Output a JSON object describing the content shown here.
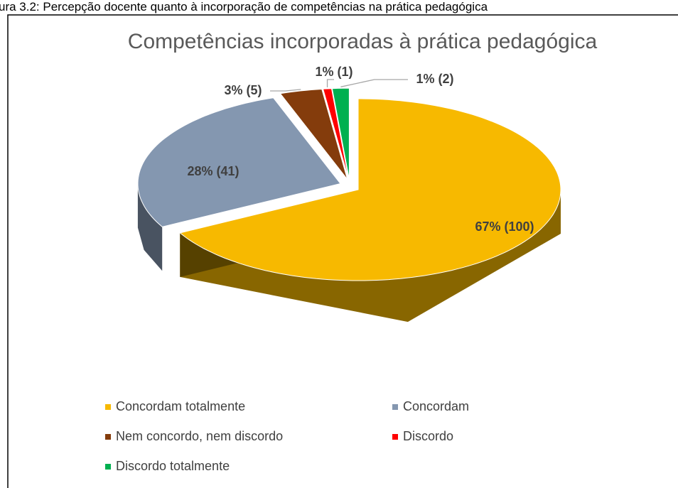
{
  "caption": "ura 3.2: Percepção docente quanto à incorporação de competências na prática pedagógica",
  "chart_data": {
    "type": "pie3d",
    "title": "Competências incorporadas à prática pedagógica",
    "categories": [
      "Concordam totalmente",
      "Concordam",
      "Nem concordo, nem discordo",
      "Discordo",
      "Discordo totalmente"
    ],
    "values": [
      100,
      41,
      5,
      1,
      2
    ],
    "value_labels": [
      "67% (100)",
      "28% (41)",
      "3% (5)",
      "1% (1)",
      "1% (2)"
    ],
    "colors": [
      "#f7b900",
      "#8497b0",
      "#843c0c",
      "#ff0000",
      "#00b050"
    ],
    "legend": "bottom"
  }
}
